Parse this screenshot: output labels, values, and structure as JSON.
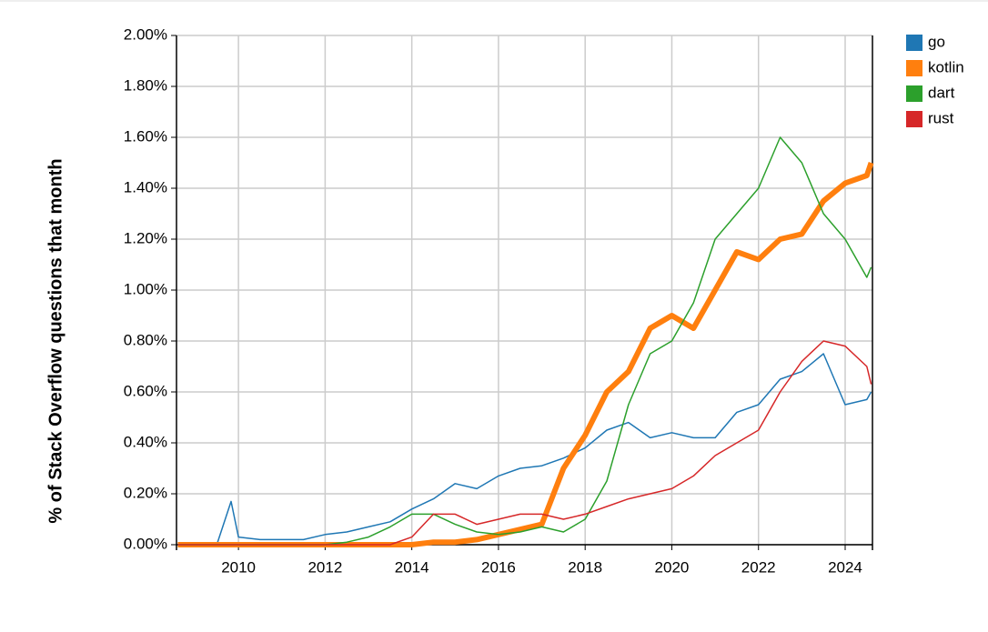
{
  "chart_data": {
    "type": "line",
    "y_label": "% of Stack Overflow questions that month",
    "x": [
      2008.6,
      2009,
      2009.5,
      2009.83,
      2010,
      2010.5,
      2011,
      2011.5,
      2012,
      2012.5,
      2013,
      2013.5,
      2014,
      2014.5,
      2015,
      2015.5,
      2016,
      2016.5,
      2017,
      2017.5,
      2018,
      2018.5,
      2019,
      2019.5,
      2020,
      2020.5,
      2021,
      2021.5,
      2022,
      2022.5,
      2023,
      2023.5,
      2024,
      2024.5,
      2024.6
    ],
    "series": [
      {
        "name": "go",
        "color": "#1f77b4",
        "width": 1.5,
        "values": [
          0,
          0,
          0,
          0.17,
          0.03,
          0.02,
          0.02,
          0.02,
          0.04,
          0.05,
          0.07,
          0.09,
          0.14,
          0.18,
          0.24,
          0.22,
          0.27,
          0.3,
          0.31,
          0.34,
          0.38,
          0.45,
          0.48,
          0.42,
          0.44,
          0.42,
          0.42,
          0.52,
          0.55,
          0.65,
          0.68,
          0.75,
          0.55,
          0.57,
          0.6
        ]
      },
      {
        "name": "kotlin",
        "color": "#ff7f0e",
        "width": 6,
        "values": [
          0,
          0,
          0,
          0,
          0,
          0,
          0,
          0,
          0,
          0,
          0,
          0,
          0,
          0.01,
          0.01,
          0.02,
          0.04,
          0.06,
          0.08,
          0.3,
          0.43,
          0.6,
          0.68,
          0.85,
          0.9,
          0.85,
          1.0,
          1.15,
          1.12,
          1.2,
          1.22,
          1.35,
          1.42,
          1.45,
          1.5
        ]
      },
      {
        "name": "dart",
        "color": "#2ca02c",
        "width": 1.5,
        "values": [
          0,
          0,
          0,
          0,
          0,
          0,
          0,
          0,
          0,
          0.01,
          0.03,
          0.07,
          0.12,
          0.12,
          0.08,
          0.05,
          0.04,
          0.05,
          0.07,
          0.05,
          0.1,
          0.25,
          0.55,
          0.75,
          0.8,
          0.95,
          1.2,
          1.3,
          1.4,
          1.6,
          1.5,
          1.3,
          1.2,
          1.05,
          1.09
        ]
      },
      {
        "name": "rust",
        "color": "#d62728",
        "width": 1.5,
        "values": [
          0,
          0,
          0,
          0,
          0,
          0,
          0,
          0,
          0,
          0,
          0,
          0,
          0.03,
          0.12,
          0.12,
          0.08,
          0.1,
          0.12,
          0.12,
          0.1,
          0.12,
          0.15,
          0.18,
          0.2,
          0.22,
          0.27,
          0.35,
          0.4,
          0.45,
          0.6,
          0.72,
          0.8,
          0.78,
          0.7,
          0.63
        ]
      }
    ],
    "xlim": [
      2008.57,
      2024.63
    ],
    "xticks": [
      2010,
      2012,
      2014,
      2016,
      2018,
      2020,
      2022,
      2024
    ],
    "ylim": [
      0,
      2
    ],
    "yticks": [
      {
        "value": 0,
        "label": "0.00%"
      },
      {
        "value": 0.2,
        "label": "0.20%"
      },
      {
        "value": 0.4,
        "label": "0.40%"
      },
      {
        "value": 0.6,
        "label": "0.60%"
      },
      {
        "value": 0.8,
        "label": "0.80%"
      },
      {
        "value": 1.0,
        "label": "1.00%"
      },
      {
        "value": 1.2,
        "label": "1.20%"
      },
      {
        "value": 1.4,
        "label": "1.40%"
      },
      {
        "value": 1.6,
        "label": "1.60%"
      },
      {
        "value": 1.8,
        "label": "1.80%"
      },
      {
        "value": 2.0,
        "label": "2.00%"
      }
    ],
    "grid": true,
    "legend": "right"
  }
}
